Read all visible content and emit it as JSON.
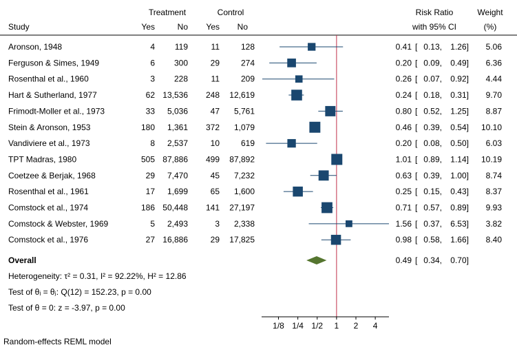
{
  "chart_data": {
    "type": "forest",
    "headers": {
      "treatment": "Treatment",
      "control": "Control",
      "study": "Study",
      "yes": "Yes",
      "no": "No",
      "rr_top": "Risk Ratio",
      "rr_bottom": "with 95% CI",
      "weight_top": "Weight",
      "weight_bottom": "(%)"
    },
    "studies": [
      {
        "name": "Aronson, 1948",
        "t_yes": "4",
        "t_no": "119",
        "c_yes": "11",
        "c_no": "128",
        "rr": 0.41,
        "lo": 0.13,
        "hi": 1.26,
        "weight": 5.06
      },
      {
        "name": "Ferguson & Simes, 1949",
        "t_yes": "6",
        "t_no": "300",
        "c_yes": "29",
        "c_no": "274",
        "rr": 0.2,
        "lo": 0.09,
        "hi": 0.49,
        "weight": 6.36
      },
      {
        "name": "Rosenthal et al., 1960",
        "t_yes": "3",
        "t_no": "228",
        "c_yes": "11",
        "c_no": "209",
        "rr": 0.26,
        "lo": 0.07,
        "hi": 0.92,
        "weight": 4.44
      },
      {
        "name": "Hart & Sutherland, 1977",
        "t_yes": "62",
        "t_no": "13,536",
        "c_yes": "248",
        "c_no": "12,619",
        "rr": 0.24,
        "lo": 0.18,
        "hi": 0.31,
        "weight": 9.7
      },
      {
        "name": "Frimodt-Moller et al., 1973",
        "t_yes": "33",
        "t_no": "5,036",
        "c_yes": "47",
        "c_no": "5,761",
        "rr": 0.8,
        "lo": 0.52,
        "hi": 1.25,
        "weight": 8.87
      },
      {
        "name": "Stein & Aronson, 1953",
        "t_yes": "180",
        "t_no": "1,361",
        "c_yes": "372",
        "c_no": "1,079",
        "rr": 0.46,
        "lo": 0.39,
        "hi": 0.54,
        "weight": 10.1
      },
      {
        "name": "Vandiviere et al., 1973",
        "t_yes": "8",
        "t_no": "2,537",
        "c_yes": "10",
        "c_no": "619",
        "rr": 0.2,
        "lo": 0.08,
        "hi": 0.5,
        "weight": 6.03
      },
      {
        "name": "TPT Madras, 1980",
        "t_yes": "505",
        "t_no": "87,886",
        "c_yes": "499",
        "c_no": "87,892",
        "rr": 1.01,
        "lo": 0.89,
        "hi": 1.14,
        "weight": 10.19
      },
      {
        "name": "Coetzee & Berjak, 1968",
        "t_yes": "29",
        "t_no": "7,470",
        "c_yes": "45",
        "c_no": "7,232",
        "rr": 0.63,
        "lo": 0.39,
        "hi": 1.0,
        "weight": 8.74
      },
      {
        "name": "Rosenthal et al., 1961",
        "t_yes": "17",
        "t_no": "1,699",
        "c_yes": "65",
        "c_no": "1,600",
        "rr": 0.25,
        "lo": 0.15,
        "hi": 0.43,
        "weight": 8.37
      },
      {
        "name": "Comstock et al., 1974",
        "t_yes": "186",
        "t_no": "50,448",
        "c_yes": "141",
        "c_no": "27,197",
        "rr": 0.71,
        "lo": 0.57,
        "hi": 0.89,
        "weight": 9.93
      },
      {
        "name": "Comstock & Webster, 1969",
        "t_yes": "5",
        "t_no": "2,493",
        "c_yes": "3",
        "c_no": "2,338",
        "rr": 1.56,
        "lo": 0.37,
        "hi": 6.53,
        "weight": 3.82
      },
      {
        "name": "Comstock et al., 1976",
        "t_yes": "27",
        "t_no": "16,886",
        "c_yes": "29",
        "c_no": "17,825",
        "rr": 0.98,
        "lo": 0.58,
        "hi": 1.66,
        "weight": 8.4
      }
    ],
    "overall": {
      "label": "Overall",
      "rr": 0.49,
      "lo": 0.34,
      "hi": 0.7
    },
    "stats": [
      "Heterogeneity: τ² = 0.31, I² = 92.22%, H² = 12.86",
      "Test of θᵢ = θⱼ: Q(12) = 152.23, p = 0.00",
      "Test of θ = 0: z = -3.97, p = 0.00"
    ],
    "x_ticks": [
      {
        "v": 0.125,
        "label": "1/8"
      },
      {
        "v": 0.25,
        "label": "1/4"
      },
      {
        "v": 0.5,
        "label": "1/2"
      },
      {
        "v": 1,
        "label": "1"
      },
      {
        "v": 2,
        "label": "2"
      },
      {
        "v": 4,
        "label": "4"
      }
    ],
    "x_scale": "log",
    "xlim": [
      0.07,
      6.53
    ],
    "null_line": 1,
    "footnote": "Random-effects REML model",
    "colors": {
      "marker": "#1a476f",
      "ci": "#1a476f",
      "diamond": "#55752f",
      "null_line": "#c0304a",
      "axis": "#000000"
    }
  }
}
